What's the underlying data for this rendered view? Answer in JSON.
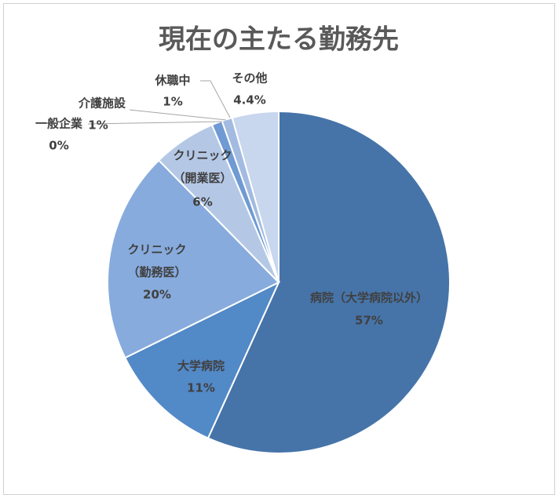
{
  "chart_data": {
    "type": "pie",
    "title": "現在の主たる勤務先",
    "categories": [
      "病院（大学病院以外）",
      "大学病院",
      "クリニック（勤務医）",
      "クリニック（開業医）",
      "一般企業",
      "介護施設",
      "休職中",
      "その他"
    ],
    "values": [
      57,
      11,
      20,
      6,
      0,
      1,
      1,
      4.4
    ],
    "value_labels": [
      "57%",
      "11%",
      "20%",
      "6%",
      "0%",
      "1%",
      "1%",
      "4.4%"
    ],
    "colors": [
      "#4674a9",
      "#5289c7",
      "#87abdd",
      "#b4c8e6",
      "#3d679c",
      "#6f9ad3",
      "#a3bbe0",
      "#c8d6ee"
    ]
  }
}
